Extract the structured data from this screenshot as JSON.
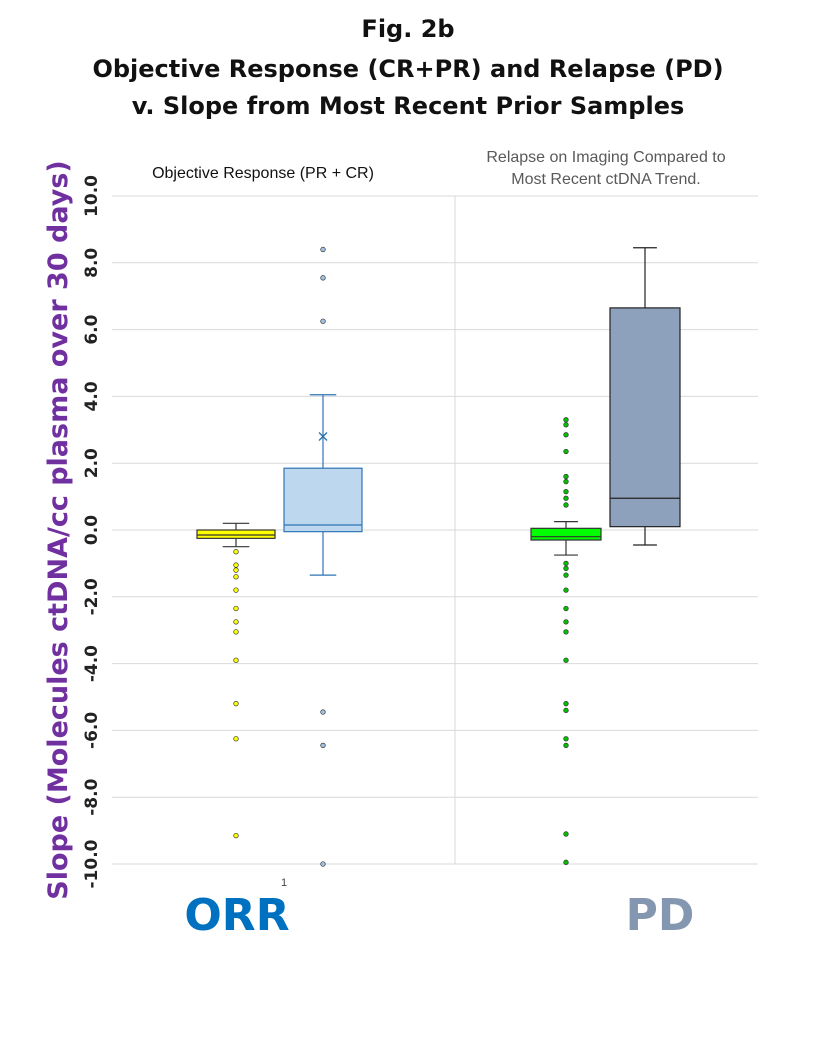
{
  "title": {
    "line1": "Fig. 2b",
    "line2": "Objective Response (CR+PR) and Relapse (PD)",
    "line3": "v. Slope from Most Recent Prior Samples"
  },
  "chart_data": {
    "type": "box",
    "ylabel": "Slope (Molecules ctDNA/cc plasma over 30 days)",
    "ylim": [
      -10,
      10
    ],
    "yticks": [
      "10.0",
      "8.0",
      "6.0",
      "4.0",
      "2.0",
      "0.0",
      "-2.0",
      "-4.0",
      "-6.0",
      "-8.0",
      "-10.0"
    ],
    "grid": true,
    "x_tick_label": "1",
    "panels": [
      {
        "subtitle": "Objective Response (PR + CR)",
        "category_label": "ORR",
        "category_color": "#0070c0",
        "boxes": [
          {
            "fill": "#ffff00",
            "stroke": "#333333",
            "point_color": "#ffff00",
            "whisker_low": -0.5,
            "q1": -0.25,
            "median": -0.15,
            "q3": 0.0,
            "whisker_high": 0.2,
            "mean": null,
            "outliers": [
              -0.65,
              -1.05,
              -1.2,
              -1.4,
              -1.8,
              -2.35,
              -2.75,
              -3.05,
              -3.9,
              -5.2,
              -6.25,
              -9.15
            ]
          },
          {
            "fill": "#bdd7ee",
            "stroke": "#2e75b6",
            "point_color": "#9dc3e6",
            "whisker_low": -1.35,
            "q1": -0.05,
            "median": 0.15,
            "q3": 1.85,
            "whisker_high": 4.05,
            "mean": 2.8,
            "outliers": [
              8.4,
              7.55,
              6.25,
              -5.45,
              -6.45,
              -10.0
            ]
          }
        ]
      },
      {
        "subtitle": "Relapse on Imaging Compared to Most Recent ctDNA Trend.",
        "category_label": "PD",
        "category_color": "#8497b0",
        "boxes": [
          {
            "fill": "#00ff00",
            "stroke": "#333333",
            "point_color": "#00c000",
            "whisker_low": -0.75,
            "q1": -0.3,
            "median": -0.2,
            "q3": 0.05,
            "whisker_high": 0.25,
            "mean": null,
            "outliers": [
              3.3,
              3.15,
              2.85,
              2.35,
              1.6,
              1.45,
              1.15,
              0.95,
              0.75,
              -1.0,
              -1.15,
              -1.35,
              -1.8,
              -2.35,
              -2.75,
              -3.05,
              -3.9,
              -5.2,
              -5.4,
              -6.25,
              -6.45,
              -9.1,
              -9.95
            ]
          },
          {
            "fill": "#8ea1bc",
            "stroke": "#222222",
            "point_color": "#8ea1bc",
            "whisker_low": -0.45,
            "q1": 0.1,
            "median": 0.95,
            "q3": 6.65,
            "whisker_high": 8.45,
            "mean": null,
            "outliers": []
          }
        ]
      }
    ]
  }
}
